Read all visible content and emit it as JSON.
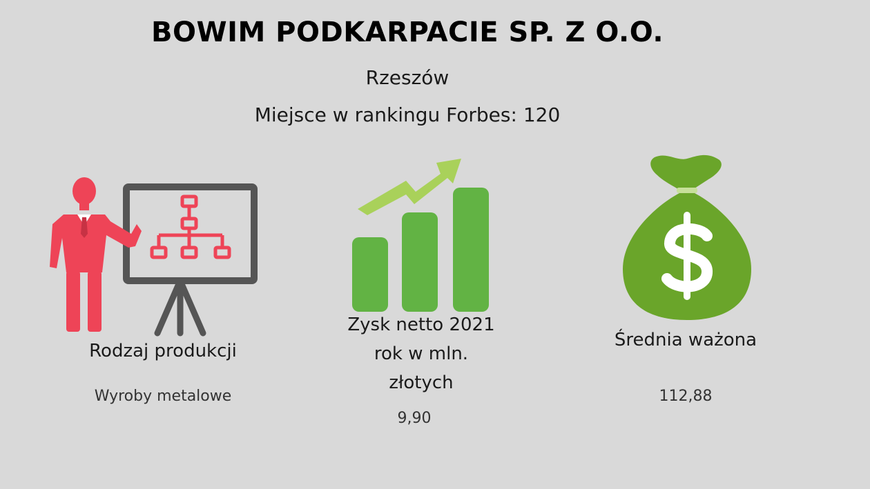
{
  "header": {
    "company_name": "BOWIM PODKARPACIE SP. Z O.O.",
    "city": "Rzeszów",
    "forbes_rank_text": "Miejsce w rankingu Forbes: 120"
  },
  "colors": {
    "background": "#d9d9d9",
    "presenter_red": "#ee4457",
    "board_gray": "#555555",
    "bar_green": "#62b344",
    "arrow_green": "#a9d15a",
    "bag_green": "#6aa52a"
  },
  "columns": [
    {
      "icon": "presentation-board-icon",
      "label": "Rodzaj produkcji",
      "value": "Wyroby metalowe"
    },
    {
      "icon": "growth-chart-icon",
      "label_lines": [
        "Zysk netto 2021",
        "rok w mln.",
        "złotych"
      ],
      "value": "9,90"
    },
    {
      "icon": "money-bag-icon",
      "label": "Średnia ważona",
      "value": "112,88"
    }
  ]
}
